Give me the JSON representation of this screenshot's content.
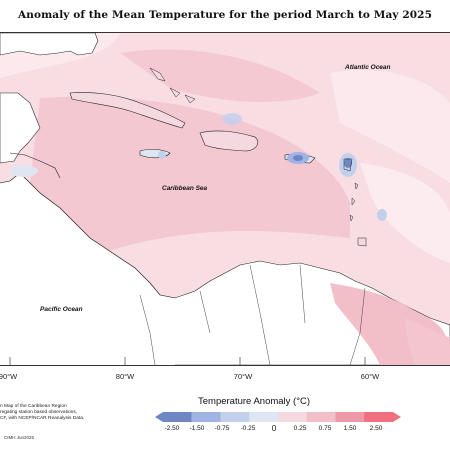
{
  "title": "Anomaly of the Mean Temperature for the period March to May 2025",
  "map": {
    "places": [
      {
        "id": "atlantic",
        "label": "Atlantic Ocean"
      },
      {
        "id": "caribbean",
        "label": "Caribbean Sea"
      },
      {
        "id": "pacific",
        "label": "Pacific Ocean"
      }
    ],
    "longitude_labels": [
      "90°W",
      "80°W",
      "70°W",
      "60°W"
    ]
  },
  "legend": {
    "title": "Temperature Anomaly (°C)",
    "ticks": [
      "-2.50",
      "-1.50",
      "-0.75",
      "-0.25",
      "0",
      "0.25",
      "0.75",
      "1.50",
      "2.50"
    ],
    "colors": [
      "#6f86c4",
      "#9fb3e4",
      "#c2d0ec",
      "#dde6f2",
      "#f6d9e0",
      "#f2bfc9",
      "#ee99a6",
      "#f07080"
    ]
  },
  "caption": {
    "lines": [
      "n Map of the Caribbean Region",
      "regating station based observations,",
      "CF, with NCEP/NCAR Reanalysis Data."
    ],
    "copyright": "CIMH Jun2025"
  }
}
